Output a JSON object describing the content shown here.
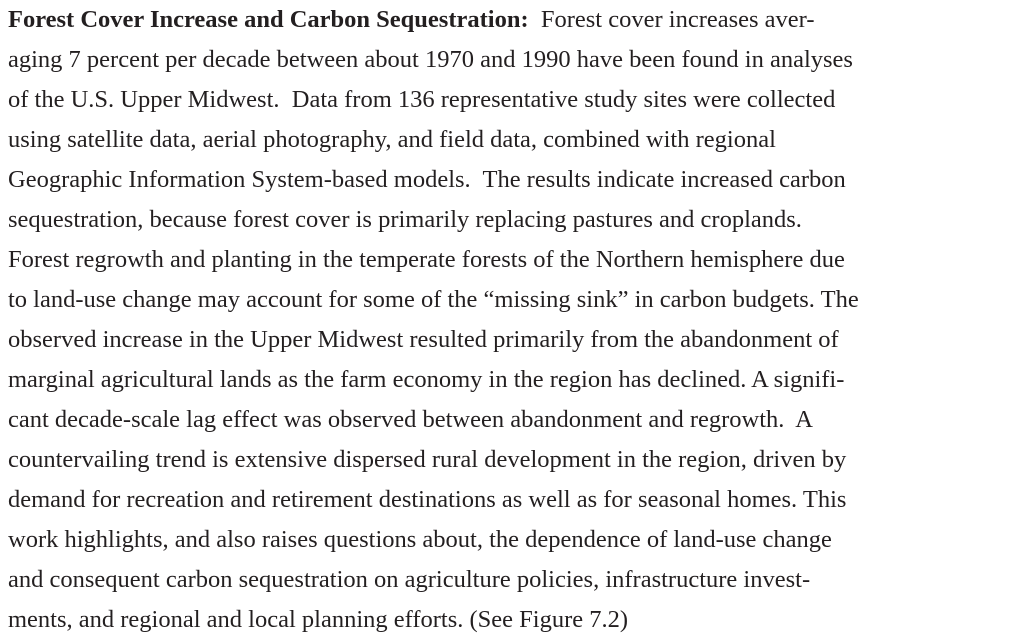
{
  "paragraph": {
    "heading": "Forest Cover Increase and Carbon Sequestration:",
    "lines": [
      "Forest cover increases aver-",
      "aging 7 percent per decade between about 1970 and 1990 have been found in analyses",
      "of the U.S. Upper Midwest.  Data from 136 representative study sites were collected",
      "using satellite data, aerial photography, and field data, combined with regional",
      "Geographic Information System-based models.  The results indicate increased carbon",
      "sequestration, because forest cover is primarily replacing pastures and croplands.",
      "Forest regrowth and planting in the temperate forests of the Northern hemisphere due",
      "to land-use change may account for some of the “missing sink” in carbon budgets. The",
      "observed increase in the Upper Midwest resulted primarily from the abandonment of",
      "marginal agricultural lands as the farm economy in the region has declined. A signifi-",
      "cant decade-scale lag effect was observed between abandonment and regrowth.  A",
      "countervailing trend is extensive dispersed rural development in the region, driven by",
      "demand for recreation and retirement destinations as well as for seasonal homes. This",
      "work highlights, and also raises questions about, the dependence of land-use change",
      "and consequent carbon sequestration on agriculture policies, infrastructure invest-",
      "ments, and regional and local planning efforts. (See Figure 7.2)"
    ]
  }
}
